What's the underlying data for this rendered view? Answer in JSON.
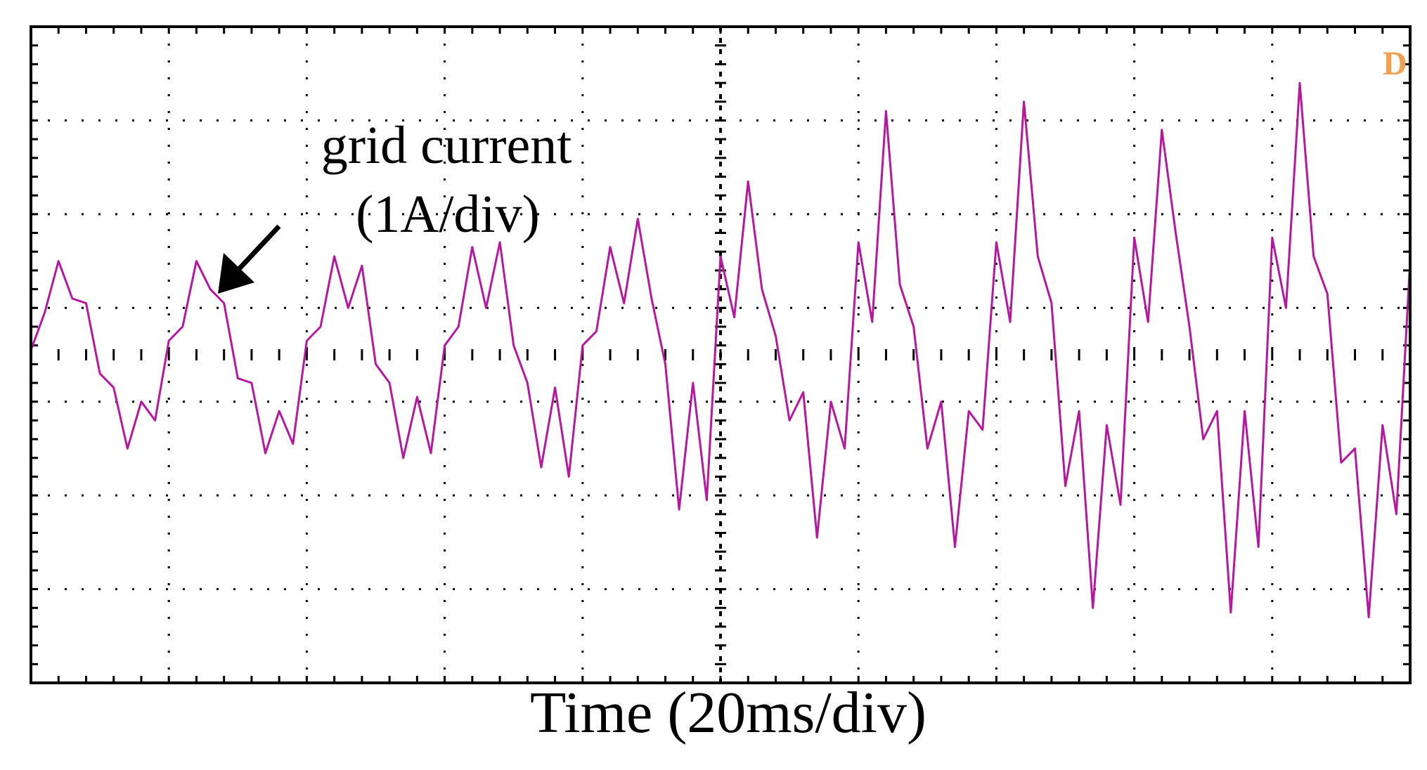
{
  "annotation": {
    "line1": "grid current",
    "line2": "(1A/div)"
  },
  "marker_glyph": "D",
  "chart_data": {
    "type": "line",
    "title": "",
    "xlabel": "Time (20ms/div)",
    "ylabel": "",
    "x_divisions": 10,
    "y_divisions": 7,
    "grid": true,
    "grid_style": "dotted",
    "trace_color": "#b5179e",
    "marker_color": "#f0a050",
    "series": [
      {
        "name": "grid current",
        "x": [
          0.0,
          0.1,
          0.2,
          0.3,
          0.4,
          0.5,
          0.6,
          0.7,
          0.8,
          0.9,
          1.0,
          1.1,
          1.2,
          1.3,
          1.4,
          1.5,
          1.6,
          1.7,
          1.8,
          1.9,
          2.0,
          2.1,
          2.2,
          2.3,
          2.4,
          2.5,
          2.6,
          2.7,
          2.8,
          2.9,
          3.0,
          3.1,
          3.2,
          3.3,
          3.4,
          3.5,
          3.6,
          3.7,
          3.8,
          3.9,
          4.0,
          4.1,
          4.2,
          4.3,
          4.4,
          4.5,
          4.6,
          4.7,
          4.8,
          4.9,
          5.0,
          5.1,
          5.2,
          5.3,
          5.4,
          5.5,
          5.6,
          5.7,
          5.8,
          5.9,
          6.0,
          6.1,
          6.2,
          6.3,
          6.4,
          6.5,
          6.6,
          6.7,
          6.8,
          6.9,
          7.0,
          7.1,
          7.2,
          7.3,
          7.4,
          7.5,
          7.6,
          7.7,
          7.8,
          7.9,
          8.0,
          8.1,
          8.2,
          8.3,
          8.4,
          8.5,
          8.6,
          8.7,
          8.8,
          8.9,
          9.0,
          9.1,
          9.2,
          9.3,
          9.4,
          9.5,
          9.6,
          9.7,
          9.8,
          9.9,
          10.0
        ],
        "y": [
          0.05,
          0.45,
          1.0,
          0.6,
          0.55,
          -0.2,
          -0.35,
          -1.0,
          -0.5,
          -0.7,
          0.15,
          0.3,
          1.0,
          0.7,
          0.55,
          -0.25,
          -0.3,
          -1.05,
          -0.6,
          -0.95,
          0.15,
          0.3,
          1.05,
          0.5,
          0.95,
          -0.1,
          -0.3,
          -1.1,
          -0.45,
          -1.05,
          0.1,
          0.3,
          1.15,
          0.5,
          1.2,
          0.1,
          -0.3,
          -1.2,
          -0.35,
          -1.3,
          0.1,
          0.25,
          1.15,
          0.55,
          1.45,
          0.6,
          -0.1,
          -1.65,
          -0.3,
          -1.55,
          1.05,
          0.4,
          1.85,
          0.7,
          0.2,
          -0.7,
          -0.4,
          -1.95,
          -0.5,
          -1.0,
          1.2,
          0.35,
          2.6,
          0.75,
          0.3,
          -1.0,
          -0.5,
          -2.05,
          -0.6,
          -0.8,
          1.2,
          0.35,
          2.7,
          1.05,
          0.55,
          -1.4,
          -0.6,
          -2.7,
          -0.75,
          -1.6,
          1.25,
          0.35,
          2.4,
          1.3,
          0.3,
          -0.9,
          -0.6,
          -2.75,
          -0.6,
          -2.05,
          1.25,
          0.5,
          2.9,
          1.05,
          0.65,
          -1.15,
          -1.0,
          -2.8,
          -0.75,
          -1.7,
          1.0
        ]
      }
    ]
  }
}
